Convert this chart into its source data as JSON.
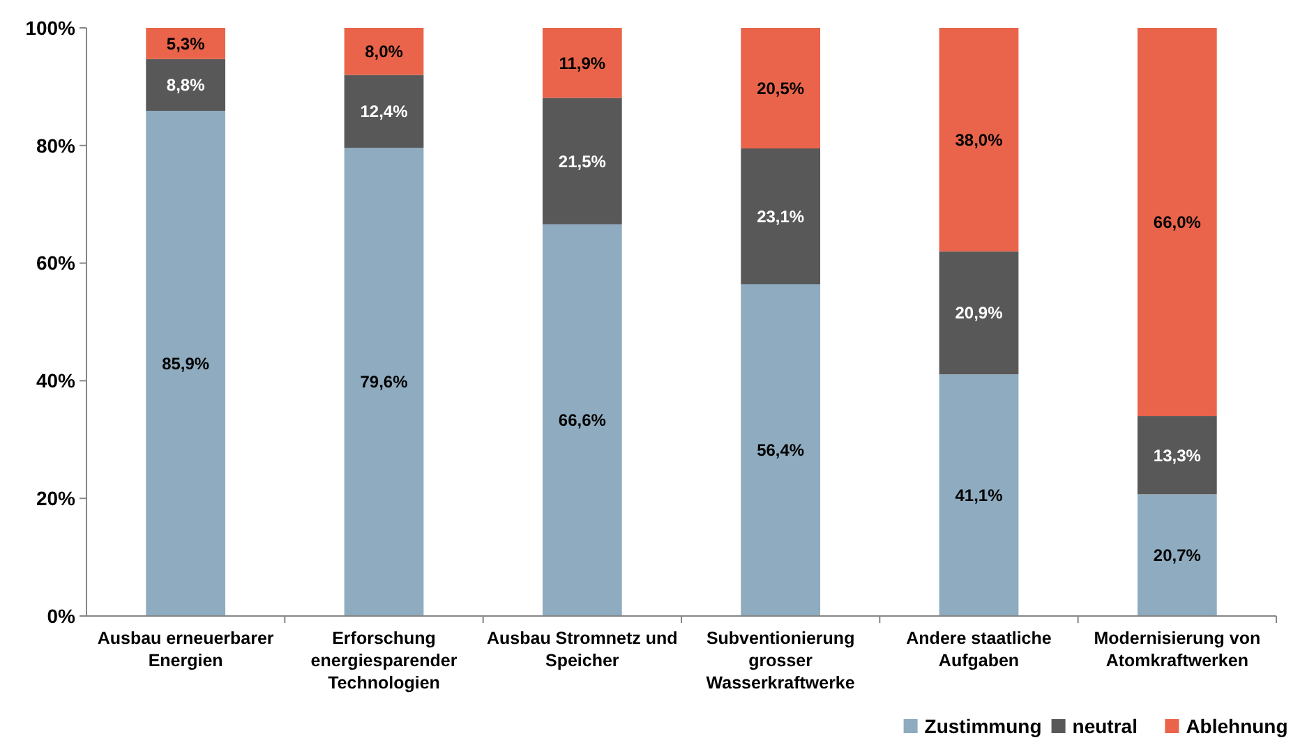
{
  "chart_data": {
    "type": "bar",
    "stacked": true,
    "categories": [
      "Ausbau erneuerbarer Energien",
      "Erforschung energiesparender Technologien",
      "Ausbau Stromnetz und Speicher",
      "Subventionierung grosser Wasserkraftwerke",
      "Andere staatliche Aufgaben",
      "Modernisierung von Atomkraftwerken"
    ],
    "series": [
      {
        "name": "Zustimmung",
        "color": "#8eabbf",
        "values": [
          85.9,
          79.6,
          66.6,
          56.4,
          41.1,
          20.7
        ],
        "value_labels": [
          "85,9%",
          "79,6%",
          "66,6%",
          "56,4%",
          "41,1%",
          "20,7%"
        ]
      },
      {
        "name": "neutral",
        "color": "#585858",
        "values": [
          8.8,
          12.4,
          21.5,
          23.1,
          20.9,
          13.3
        ],
        "value_labels": [
          "8,8%",
          "12,4%",
          "21,5%",
          "23,1%",
          "20,9%",
          "13,3%"
        ]
      },
      {
        "name": "Ablehnung",
        "color": "#e9644a",
        "values": [
          5.3,
          8.0,
          11.9,
          20.5,
          38.0,
          66.0
        ],
        "value_labels": [
          "5,3%",
          "8,0%",
          "11,9%",
          "20,5%",
          "38,0%",
          "66,0%"
        ]
      }
    ],
    "ylim": [
      0,
      100
    ],
    "yticks": [
      {
        "value": 0,
        "label": "0%"
      },
      {
        "value": 20,
        "label": "20%"
      },
      {
        "value": 40,
        "label": "40%"
      },
      {
        "value": 60,
        "label": "60%"
      },
      {
        "value": 80,
        "label": "80%"
      },
      {
        "value": 100,
        "label": "100%"
      }
    ],
    "grid": false,
    "legend": "bottom right"
  }
}
